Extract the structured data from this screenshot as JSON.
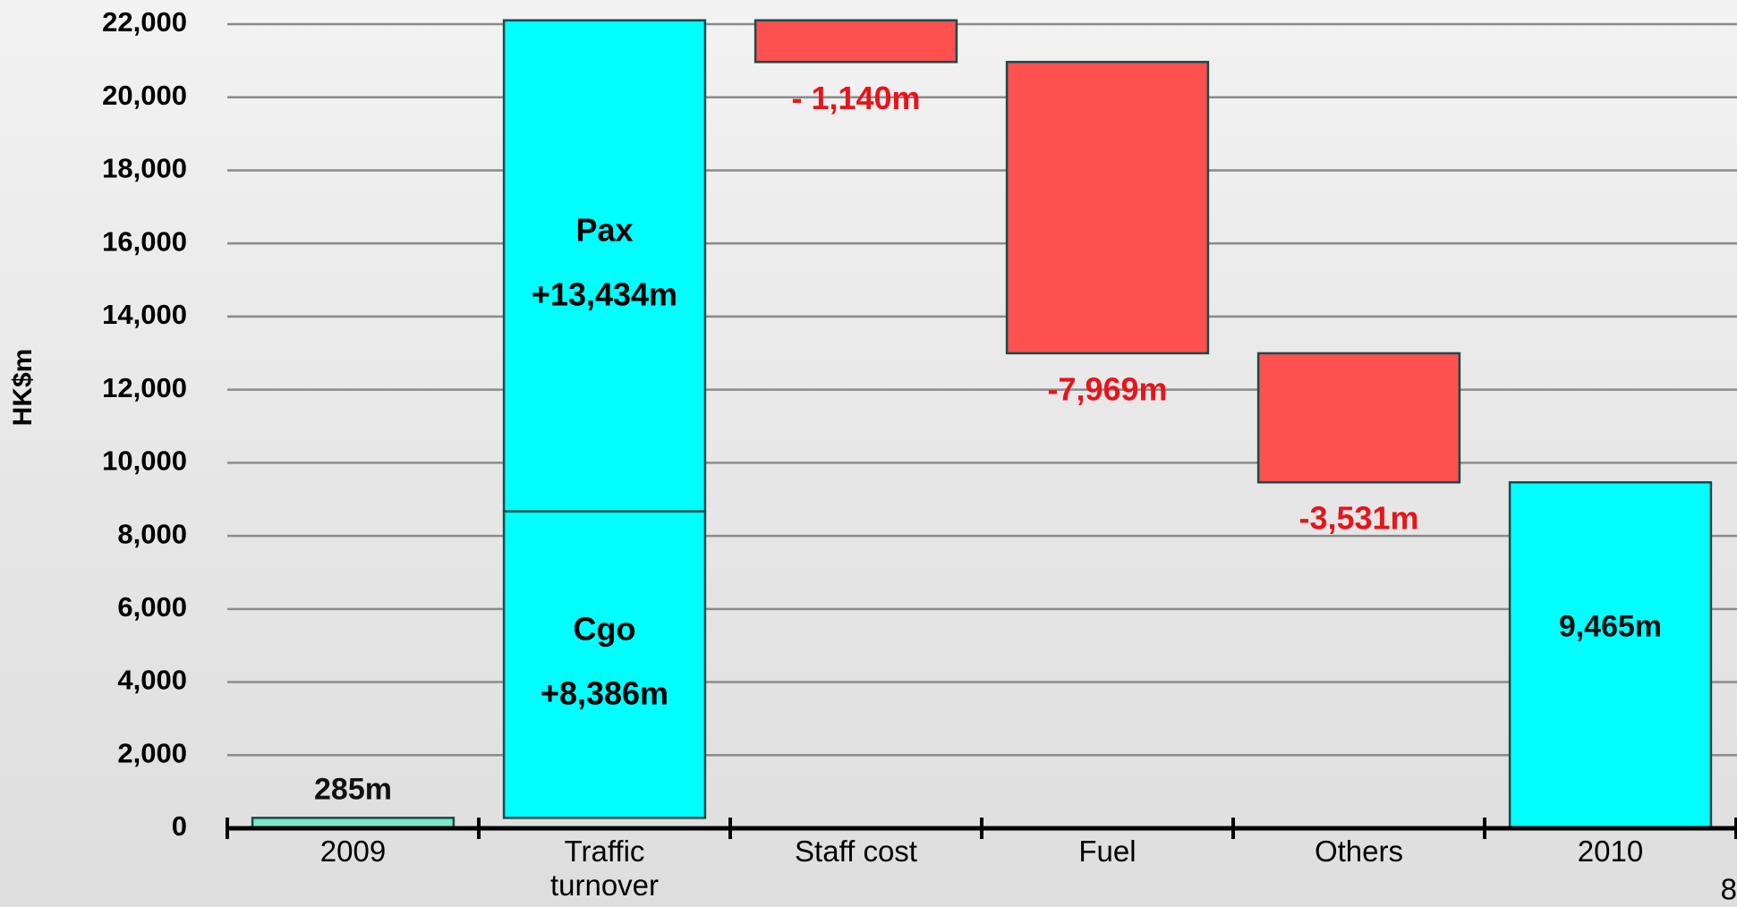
{
  "chart_data": {
    "type": "waterfall",
    "y_label": "HK$m",
    "page_number": "8",
    "categories": [
      "2009",
      "Traffic turnover",
      "Staff cost",
      "Fuel",
      "Others",
      "2010"
    ],
    "measure": [
      "absolute",
      "relative",
      "relative",
      "relative",
      "relative",
      "absolute"
    ],
    "bars": [
      {
        "values": [
          285
        ],
        "value_labels": [
          "285m"
        ],
        "colors": [
          "#7de8c8"
        ]
      },
      {
        "names": [
          "Cgo",
          "Pax"
        ],
        "values": [
          8386,
          13434
        ],
        "value_labels": [
          "+8,386m",
          "+13,434m"
        ],
        "colors": [
          "#00ffff",
          "#00ffff"
        ]
      },
      {
        "values": [
          -1140
        ],
        "value_labels": [
          "- 1,140m"
        ],
        "colors": [
          "#ff5050"
        ]
      },
      {
        "values": [
          -7969
        ],
        "value_labels": [
          "-7,969m"
        ],
        "colors": [
          "#ff5050"
        ]
      },
      {
        "values": [
          -3531
        ],
        "value_labels": [
          "-3,531m"
        ],
        "colors": [
          "#ff5050"
        ]
      },
      {
        "values": [
          9465
        ],
        "value_labels": [
          "9,465m"
        ],
        "colors": [
          "#00ffff"
        ]
      }
    ],
    "ylim": [
      0,
      22000
    ],
    "yticks": [
      0,
      {
        "value": 2000,
        "label": "2,000"
      },
      {
        "value": 4000,
        "label": "4,000"
      },
      {
        "value": 6000,
        "label": "6,000"
      },
      {
        "value": 8000,
        "label": "8,000"
      },
      {
        "value": 10000,
        "label": "10,000"
      },
      {
        "value": 12000,
        "label": "12,000"
      },
      {
        "value": 14000,
        "label": "14,000"
      },
      {
        "value": 16000,
        "label": "16,000"
      },
      {
        "value": 18000,
        "label": "18,000"
      },
      {
        "value": 20000,
        "label": "20,000"
      },
      {
        "value": 22000,
        "label": "22,000"
      }
    ],
    "grid": true
  }
}
